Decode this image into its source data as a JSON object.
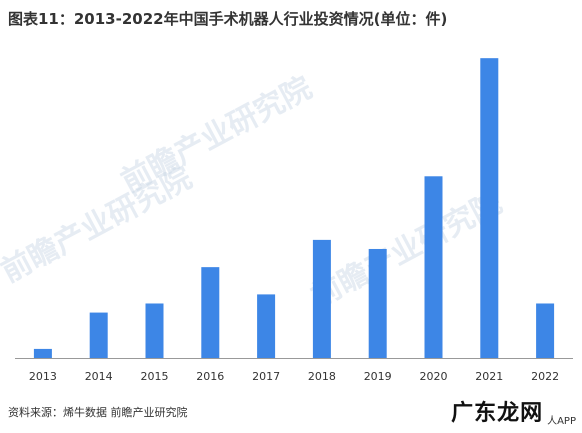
{
  "title": "图表11：2013-2022年中国手术机器人行业投资情况(单位：件)",
  "source": "资料来源：烯牛数据 前瞻产业研究院",
  "watermarks": [
    "前瞻产业研究院",
    "前瞻产业研究院",
    "前瞻产业研究院"
  ],
  "corner_mark": {
    "logo": "广东龙网",
    "sub": "人APP"
  },
  "colors": {
    "bar": "#3d86e6",
    "axis": "#999999"
  },
  "chart_data": {
    "type": "bar",
    "title": "图表11：2013-2022年中国手术机器人行业投资情况(单位：件)",
    "categories": [
      "2013",
      "2014",
      "2015",
      "2016",
      "2017",
      "2018",
      "2019",
      "2020",
      "2021",
      "2022"
    ],
    "values": [
      1,
      5,
      6,
      10,
      7,
      13,
      12,
      20,
      33,
      6
    ],
    "ylim": [
      0,
      35
    ],
    "grid": false,
    "legend": "none"
  }
}
